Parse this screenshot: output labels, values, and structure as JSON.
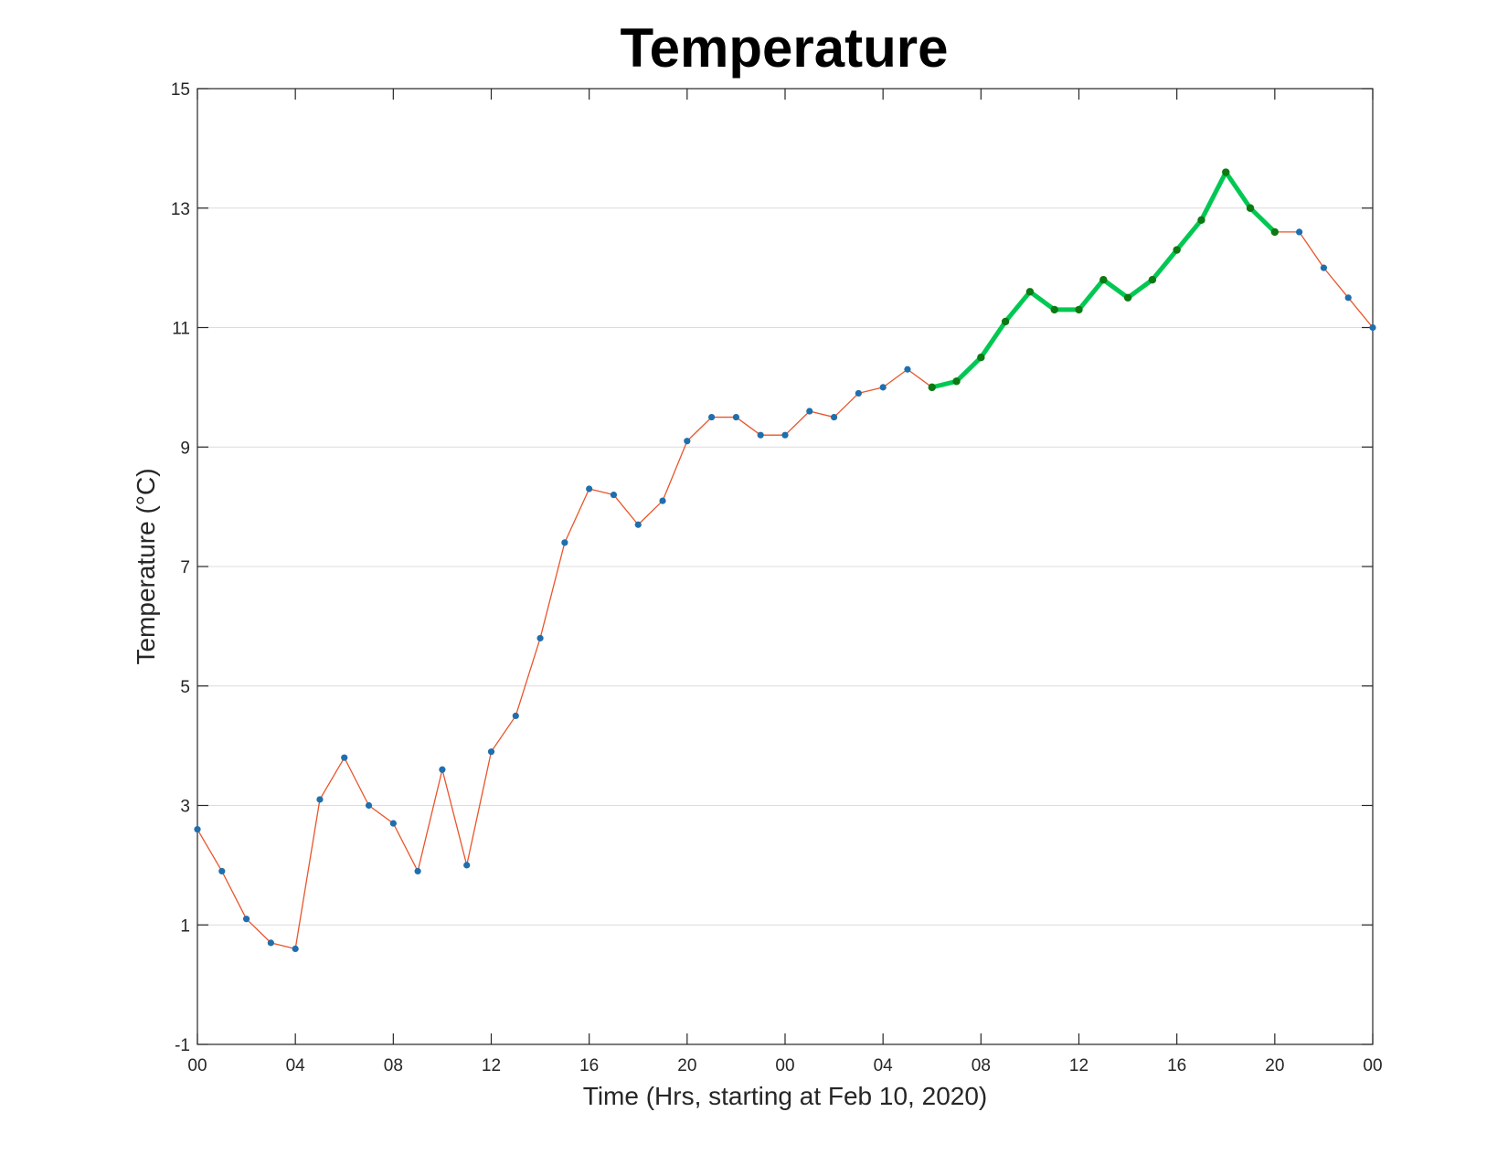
{
  "chart_data": {
    "type": "line",
    "title": "Temperature",
    "xlabel": "Time (Hrs, starting at Feb 10, 2020)",
    "ylabel": "Temperature (°C)",
    "ylim": [
      -1,
      15
    ],
    "yticks": [
      "-1",
      "1",
      "3",
      "5",
      "7",
      "9",
      "11",
      "13",
      "15"
    ],
    "xlim": [
      0,
      48
    ],
    "xticks": [
      {
        "x": 0,
        "label": "00"
      },
      {
        "x": 4,
        "label": "04"
      },
      {
        "x": 8,
        "label": "08"
      },
      {
        "x": 12,
        "label": "12"
      },
      {
        "x": 16,
        "label": "16"
      },
      {
        "x": 20,
        "label": "20"
      },
      {
        "x": 24,
        "label": "00"
      },
      {
        "x": 28,
        "label": "04"
      },
      {
        "x": 32,
        "label": "08"
      },
      {
        "x": 36,
        "label": "12"
      },
      {
        "x": 40,
        "label": "16"
      },
      {
        "x": 44,
        "label": "20"
      },
      {
        "x": 48,
        "label": "00"
      }
    ],
    "grid": "horizontal",
    "series": [
      {
        "line_color": "#e8552a",
        "marker_color": "#1f6fad",
        "x": [
          0,
          1,
          2,
          3,
          4,
          5,
          6,
          7,
          8,
          9,
          10,
          11,
          12,
          13,
          14,
          15,
          16,
          17,
          18,
          19,
          20,
          21,
          22,
          23,
          24,
          25,
          26,
          27,
          28,
          29,
          30,
          31,
          32,
          33,
          34,
          35,
          36,
          37,
          38,
          39,
          40,
          41,
          42,
          43,
          44,
          45,
          46,
          47,
          48
        ],
        "values": [
          2.6,
          1.9,
          1.1,
          0.7,
          0.6,
          3.1,
          3.8,
          3.0,
          2.7,
          1.9,
          3.6,
          2.0,
          3.9,
          4.5,
          5.8,
          7.4,
          8.3,
          8.2,
          7.7,
          8.1,
          9.1,
          9.5,
          9.5,
          9.2,
          9.2,
          9.6,
          9.5,
          9.9,
          10.0,
          10.3,
          10.0,
          10.1,
          10.5,
          11.1,
          11.6,
          11.3,
          11.3,
          11.8,
          11.5,
          11.8,
          12.3,
          12.8,
          13.6,
          13.0,
          12.6,
          12.6,
          12.0,
          11.5,
          11.0
        ]
      },
      {
        "line_color": "#00c853",
        "marker_color": "#0b7a12",
        "x": [
          30,
          31,
          32,
          33,
          34,
          35,
          36,
          37,
          38,
          39,
          40,
          41,
          42,
          43,
          44
        ],
        "values": [
          10.0,
          10.1,
          10.5,
          11.1,
          11.6,
          11.3,
          11.3,
          11.8,
          11.5,
          11.8,
          12.3,
          12.8,
          13.6,
          13.0,
          12.6
        ]
      }
    ]
  }
}
